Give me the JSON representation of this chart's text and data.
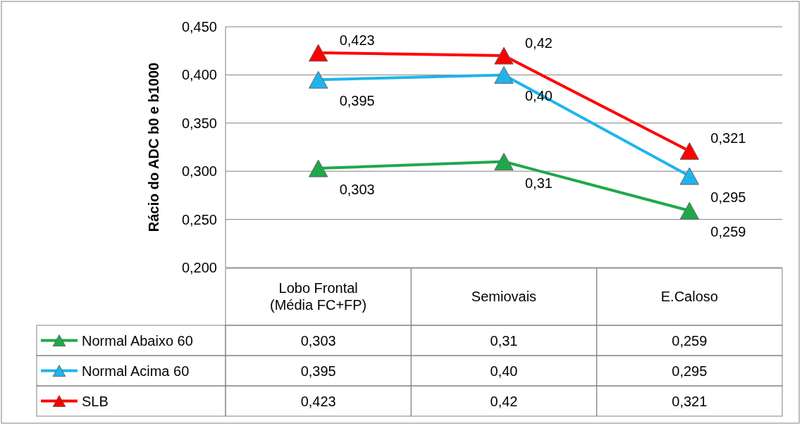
{
  "chart_data": {
    "type": "line",
    "ylabel": "Rácio do ADC b0 e b1000",
    "categories": [
      "Lobo Frontal\n(Média FC+FP)",
      "Semiovais",
      "E.Caloso"
    ],
    "series": [
      {
        "name": "Normal Abaixo 60",
        "color": "#1fa84a",
        "values": [
          0.303,
          0.31,
          0.259
        ],
        "value_labels": [
          "0,303",
          "0,31",
          "0,259"
        ]
      },
      {
        "name": "Normal Acima 60",
        "color": "#1fb4ec",
        "values": [
          0.395,
          0.4,
          0.295
        ],
        "value_labels": [
          "0,395",
          "0,40",
          "0,295"
        ]
      },
      {
        "name": "SLB",
        "color": "#ff0000",
        "values": [
          0.423,
          0.42,
          0.321
        ],
        "value_labels": [
          "0,423",
          "0,42",
          "0,321"
        ]
      }
    ],
    "ylim": [
      0.2,
      0.45
    ],
    "yticks": [
      {
        "value": 0.2,
        "label": "0,200"
      },
      {
        "value": 0.25,
        "label": "0,250"
      },
      {
        "value": 0.3,
        "label": "0,300"
      },
      {
        "value": 0.35,
        "label": "0,350"
      },
      {
        "value": 0.4,
        "label": "0,400"
      },
      {
        "value": 0.45,
        "label": "0,450"
      }
    ],
    "grid": "y",
    "legend": "bottom left",
    "marker": "triangle",
    "line_style": "solid"
  }
}
